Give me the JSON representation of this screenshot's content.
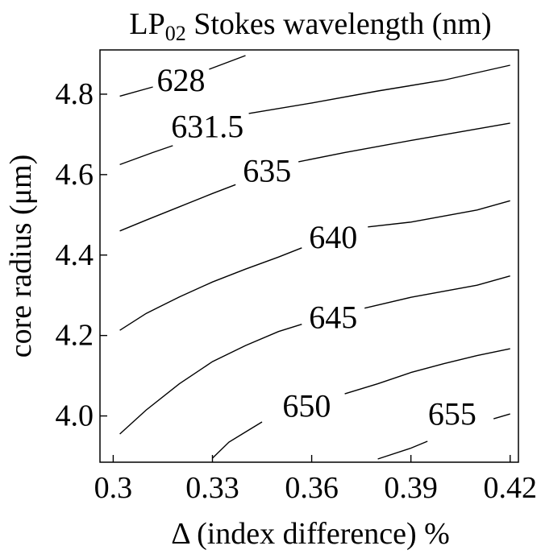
{
  "chart_data": {
    "type": "contour",
    "title": "LP",
    "title_subscript": "02",
    "title_rest": " Stokes wavelength (nm)",
    "xlabel": "Δ (index difference) %",
    "ylabel": "core radius (μm)",
    "xlim": [
      0.3,
      0.42
    ],
    "ylim": [
      3.885,
      4.91
    ],
    "x_ticks": [
      {
        "value": 0.3,
        "label": "0.3"
      },
      {
        "value": 0.33,
        "label": "0.33"
      },
      {
        "value": 0.36,
        "label": "0.36"
      },
      {
        "value": 0.39,
        "label": "0.39"
      },
      {
        "value": 0.42,
        "label": "0.42"
      }
    ],
    "y_ticks": [
      {
        "value": 4.0,
        "label": "4.0"
      },
      {
        "value": 4.2,
        "label": "4.2"
      },
      {
        "value": 4.4,
        "label": "4.4"
      },
      {
        "value": 4.6,
        "label": "4.6"
      },
      {
        "value": 4.8,
        "label": "4.8"
      }
    ],
    "grid": false,
    "legend": "none",
    "line_color": "#000000",
    "series": [
      {
        "name": "628",
        "label": "628",
        "label_at": [
          0.3205,
          4.835
        ],
        "segments": [
          [
            [
              0.302,
              4.795
            ],
            [
              0.312,
              4.818
            ]
          ],
          [
            [
              0.329,
              4.862
            ],
            [
              0.34,
              4.896
            ]
          ]
        ]
      },
      {
        "name": "631.5",
        "label": "631.5",
        "label_at": [
          0.3285,
          4.72
        ],
        "segments": [
          [
            [
              0.302,
              4.625
            ],
            [
              0.312,
              4.655
            ],
            [
              0.318,
              4.672
            ]
          ],
          [
            [
              0.341,
              4.752
            ],
            [
              0.36,
              4.778
            ],
            [
              0.38,
              4.808
            ],
            [
              0.4,
              4.835
            ],
            [
              0.42,
              4.872
            ]
          ]
        ]
      },
      {
        "name": "635",
        "label": "635",
        "label_at": [
          0.3465,
          4.61
        ],
        "segments": [
          [
            [
              0.302,
              4.46
            ],
            [
              0.31,
              4.487
            ],
            [
              0.32,
              4.52
            ],
            [
              0.33,
              4.553
            ],
            [
              0.337,
              4.575
            ]
          ],
          [
            [
              0.356,
              4.632
            ],
            [
              0.37,
              4.655
            ],
            [
              0.39,
              4.685
            ],
            [
              0.42,
              4.728
            ]
          ]
        ]
      },
      {
        "name": "640",
        "label": "640",
        "label_at": [
          0.3665,
          4.445
        ],
        "segments": [
          [
            [
              0.302,
              4.213
            ],
            [
              0.31,
              4.255
            ],
            [
              0.32,
              4.296
            ],
            [
              0.33,
              4.333
            ],
            [
              0.34,
              4.365
            ],
            [
              0.35,
              4.395
            ],
            [
              0.357,
              4.418
            ]
          ],
          [
            [
              0.377,
              4.47
            ],
            [
              0.39,
              4.482
            ],
            [
              0.41,
              4.512
            ],
            [
              0.42,
              4.535
            ]
          ]
        ]
      },
      {
        "name": "645",
        "label": "645",
        "label_at": [
          0.3665,
          4.245
        ],
        "segments": [
          [
            [
              0.302,
              3.955
            ],
            [
              0.31,
              4.015
            ],
            [
              0.32,
              4.08
            ],
            [
              0.33,
              4.135
            ],
            [
              0.34,
              4.175
            ],
            [
              0.35,
              4.21
            ],
            [
              0.357,
              4.228
            ]
          ],
          [
            [
              0.376,
              4.268
            ],
            [
              0.39,
              4.295
            ],
            [
              0.41,
              4.325
            ],
            [
              0.42,
              4.348
            ]
          ]
        ]
      },
      {
        "name": "650",
        "label": "650",
        "label_at": [
          0.3585,
          4.025
        ],
        "segments": [
          [
            [
              0.33,
              3.895
            ],
            [
              0.335,
              3.935
            ],
            [
              0.34,
              3.96
            ],
            [
              0.345,
              3.985
            ]
          ],
          [
            [
              0.37,
              4.055
            ],
            [
              0.38,
              4.08
            ],
            [
              0.39,
              4.108
            ],
            [
              0.4,
              4.13
            ],
            [
              0.41,
              4.15
            ],
            [
              0.42,
              4.167
            ]
          ]
        ]
      },
      {
        "name": "655",
        "label": "655",
        "label_at": [
          0.4025,
          4.005
        ],
        "segments": [
          [
            [
              0.38,
              3.893
            ],
            [
              0.39,
              3.92
            ],
            [
              0.395,
              3.937
            ]
          ],
          [
            [
              0.415,
              3.993
            ],
            [
              0.42,
              4.005
            ]
          ]
        ]
      }
    ]
  }
}
